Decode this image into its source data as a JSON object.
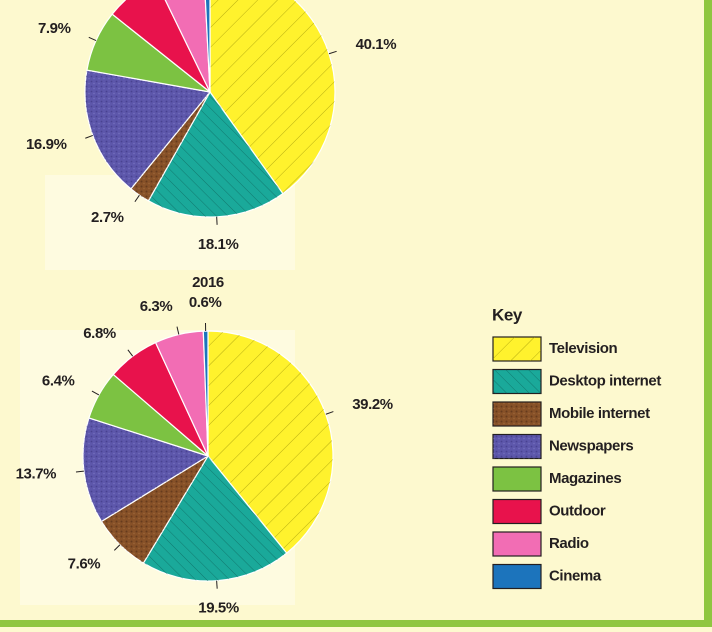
{
  "chart_data": [
    {
      "type": "pie",
      "categories": [
        "Television",
        "Desktop internet",
        "Mobile internet",
        "Newspapers",
        "Magazines",
        "Outdoor",
        "Radio",
        "Cinema"
      ],
      "values": [
        40.1,
        18.1,
        2.7,
        16.9,
        7.9,
        7.1,
        6.4,
        0.8
      ],
      "value_labels": [
        "40.1%",
        "18.1%",
        "2.7%",
        "16.9%",
        "7.9%",
        null,
        null,
        null
      ],
      "colors": [
        "#fff22d",
        "#1aa99a",
        "#875128",
        "#5d57ab",
        "#7cc242",
        "#e8124c",
        "#f26db4",
        "#1c74bc"
      ]
    },
    {
      "type": "pie",
      "title": "2016",
      "categories": [
        "Television",
        "Desktop internet",
        "Mobile internet",
        "Newspapers",
        "Magazines",
        "Outdoor",
        "Radio",
        "Cinema"
      ],
      "values": [
        39.2,
        19.5,
        7.6,
        13.7,
        6.4,
        6.8,
        6.3,
        0.6
      ],
      "value_labels": [
        "39.2%",
        "19.5%",
        "7.6%",
        "13.7%",
        "6.4%",
        "6.8%",
        "6.3%",
        "0.6%"
      ],
      "colors": [
        "#fff22d",
        "#1aa99a",
        "#875128",
        "#5d57ab",
        "#7cc242",
        "#e8124c",
        "#f26db4",
        "#1c74bc"
      ],
      "legend_title": "Key",
      "legend": "right"
    }
  ]
}
